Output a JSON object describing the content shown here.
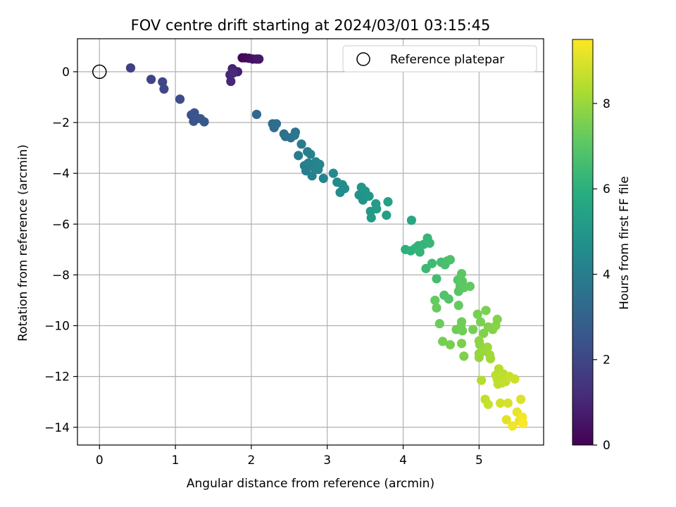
{
  "chart_data": {
    "type": "scatter",
    "title": "FOV centre drift starting at 2024/03/01 03:15:45",
    "xlabel": "Angular distance from reference (arcmin)",
    "ylabel": "Rotation from reference (arcmin)",
    "xlim": [
      -0.29,
      5.85
    ],
    "ylim": [
      -14.7,
      1.3
    ],
    "x_ticks": [
      "0",
      "1",
      "2",
      "3",
      "4",
      "5"
    ],
    "y_ticks": [
      "0",
      "−2",
      "−4",
      "−6",
      "−8",
      "−10",
      "−12",
      "−14"
    ],
    "grid": true,
    "legend": {
      "placement": "upper right",
      "entries": [
        "Reference platepar"
      ]
    },
    "colorbar": {
      "label": "Hours from first FF file",
      "colormap": "viridis",
      "range": [
        0,
        9.5
      ],
      "ticks": [
        "0",
        "2",
        "4",
        "6",
        "8"
      ]
    },
    "reference_point": {
      "x": 0,
      "y": 0,
      "label": "Reference platepar"
    },
    "points": [
      {
        "x": 1.88,
        "y": 0.55,
        "h": 0.1
      },
      {
        "x": 1.92,
        "y": 0.55,
        "h": 0.2
      },
      {
        "x": 1.97,
        "y": 0.53,
        "h": 0.3
      },
      {
        "x": 2.02,
        "y": 0.5,
        "h": 0.4
      },
      {
        "x": 2.07,
        "y": 0.5,
        "h": 0.5
      },
      {
        "x": 2.1,
        "y": 0.5,
        "h": 0.6
      },
      {
        "x": 1.82,
        "y": 0.0,
        "h": 0.8
      },
      {
        "x": 1.75,
        "y": 0.12,
        "h": 0.9
      },
      {
        "x": 1.72,
        "y": -0.12,
        "h": 1.0
      },
      {
        "x": 1.73,
        "y": -0.38,
        "h": 1.05
      },
      {
        "x": 1.76,
        "y": -0.05,
        "h": 1.1
      },
      {
        "x": 0.41,
        "y": 0.15,
        "h": 1.8
      },
      {
        "x": 0.68,
        "y": -0.3,
        "h": 1.9
      },
      {
        "x": 0.83,
        "y": -0.4,
        "h": 2.0
      },
      {
        "x": 0.85,
        "y": -0.68,
        "h": 2.05
      },
      {
        "x": 1.06,
        "y": -1.08,
        "h": 2.2
      },
      {
        "x": 1.21,
        "y": -1.7,
        "h": 2.4
      },
      {
        "x": 1.25,
        "y": -1.62,
        "h": 2.45
      },
      {
        "x": 1.24,
        "y": -1.95,
        "h": 2.5
      },
      {
        "x": 1.33,
        "y": -1.85,
        "h": 2.55
      },
      {
        "x": 1.38,
        "y": -1.97,
        "h": 2.6
      },
      {
        "x": 1.27,
        "y": -1.8,
        "h": 2.5
      },
      {
        "x": 2.07,
        "y": -1.68,
        "h": 3.2
      },
      {
        "x": 2.28,
        "y": -2.05,
        "h": 3.3
      },
      {
        "x": 2.3,
        "y": -2.2,
        "h": 3.35
      },
      {
        "x": 2.33,
        "y": -2.05,
        "h": 3.4
      },
      {
        "x": 2.43,
        "y": -2.45,
        "h": 3.5
      },
      {
        "x": 2.45,
        "y": -2.55,
        "h": 3.55
      },
      {
        "x": 2.52,
        "y": -2.6,
        "h": 3.6
      },
      {
        "x": 2.58,
        "y": -2.38,
        "h": 3.65
      },
      {
        "x": 2.57,
        "y": -2.5,
        "h": 3.7
      },
      {
        "x": 2.62,
        "y": -3.3,
        "h": 3.9
      },
      {
        "x": 2.66,
        "y": -2.85,
        "h": 3.95
      },
      {
        "x": 2.7,
        "y": -3.7,
        "h": 4.0
      },
      {
        "x": 2.72,
        "y": -3.9,
        "h": 4.05
      },
      {
        "x": 2.75,
        "y": -3.6,
        "h": 4.1
      },
      {
        "x": 2.78,
        "y": -3.25,
        "h": 4.1
      },
      {
        "x": 2.8,
        "y": -4.1,
        "h": 4.15
      },
      {
        "x": 2.82,
        "y": -3.75,
        "h": 4.2
      },
      {
        "x": 2.85,
        "y": -3.55,
        "h": 4.2
      },
      {
        "x": 2.88,
        "y": -3.85,
        "h": 4.25
      },
      {
        "x": 2.9,
        "y": -3.65,
        "h": 4.25
      },
      {
        "x": 2.74,
        "y": -3.15,
        "h": 4.05
      },
      {
        "x": 2.95,
        "y": -4.2,
        "h": 4.3
      },
      {
        "x": 3.08,
        "y": -4.0,
        "h": 4.45
      },
      {
        "x": 3.13,
        "y": -4.35,
        "h": 4.5
      },
      {
        "x": 3.17,
        "y": -4.75,
        "h": 4.55
      },
      {
        "x": 3.2,
        "y": -4.45,
        "h": 4.6
      },
      {
        "x": 3.23,
        "y": -4.6,
        "h": 4.65
      },
      {
        "x": 3.42,
        "y": -4.85,
        "h": 4.85
      },
      {
        "x": 3.45,
        "y": -4.55,
        "h": 4.9
      },
      {
        "x": 3.47,
        "y": -5.05,
        "h": 4.9
      },
      {
        "x": 3.5,
        "y": -4.7,
        "h": 4.95
      },
      {
        "x": 3.55,
        "y": -4.9,
        "h": 5.0
      },
      {
        "x": 3.57,
        "y": -5.5,
        "h": 5.05
      },
      {
        "x": 3.58,
        "y": -5.75,
        "h": 5.1
      },
      {
        "x": 3.64,
        "y": -5.2,
        "h": 5.15
      },
      {
        "x": 3.65,
        "y": -5.4,
        "h": 5.2
      },
      {
        "x": 3.78,
        "y": -5.65,
        "h": 5.3
      },
      {
        "x": 3.8,
        "y": -5.12,
        "h": 5.35
      },
      {
        "x": 4.11,
        "y": -5.85,
        "h": 5.7
      },
      {
        "x": 4.03,
        "y": -7.0,
        "h": 6.0
      },
      {
        "x": 4.1,
        "y": -7.05,
        "h": 6.05
      },
      {
        "x": 4.16,
        "y": -6.95,
        "h": 6.1
      },
      {
        "x": 4.2,
        "y": -6.85,
        "h": 6.15
      },
      {
        "x": 4.22,
        "y": -7.1,
        "h": 6.2
      },
      {
        "x": 4.27,
        "y": -6.8,
        "h": 6.25
      },
      {
        "x": 4.32,
        "y": -6.55,
        "h": 6.25
      },
      {
        "x": 4.35,
        "y": -6.75,
        "h": 6.3
      },
      {
        "x": 4.3,
        "y": -7.75,
        "h": 6.4
      },
      {
        "x": 4.38,
        "y": -7.55,
        "h": 6.45
      },
      {
        "x": 4.44,
        "y": -8.15,
        "h": 6.55
      },
      {
        "x": 4.5,
        "y": -7.5,
        "h": 6.6
      },
      {
        "x": 4.55,
        "y": -7.6,
        "h": 6.65
      },
      {
        "x": 4.58,
        "y": -7.45,
        "h": 6.7
      },
      {
        "x": 4.62,
        "y": -7.4,
        "h": 6.75
      },
      {
        "x": 4.54,
        "y": -8.8,
        "h": 6.85
      },
      {
        "x": 4.6,
        "y": -8.95,
        "h": 6.9
      },
      {
        "x": 4.72,
        "y": -8.2,
        "h": 6.95
      },
      {
        "x": 4.75,
        "y": -8.45,
        "h": 7.0
      },
      {
        "x": 4.73,
        "y": -8.65,
        "h": 7.0
      },
      {
        "x": 4.77,
        "y": -7.95,
        "h": 7.05
      },
      {
        "x": 4.78,
        "y": -8.25,
        "h": 7.05
      },
      {
        "x": 4.8,
        "y": -8.5,
        "h": 7.1
      },
      {
        "x": 4.88,
        "y": -8.45,
        "h": 7.15
      },
      {
        "x": 4.73,
        "y": -9.2,
        "h": 7.2
      },
      {
        "x": 4.42,
        "y": -9.0,
        "h": 7.2
      },
      {
        "x": 4.44,
        "y": -9.3,
        "h": 7.25
      },
      {
        "x": 4.48,
        "y": -9.92,
        "h": 7.3
      },
      {
        "x": 4.7,
        "y": -10.15,
        "h": 7.35
      },
      {
        "x": 4.76,
        "y": -10.05,
        "h": 7.4
      },
      {
        "x": 4.78,
        "y": -10.2,
        "h": 7.4
      },
      {
        "x": 4.52,
        "y": -10.62,
        "h": 7.45
      },
      {
        "x": 4.62,
        "y": -10.75,
        "h": 7.5
      },
      {
        "x": 4.77,
        "y": -10.7,
        "h": 7.55
      },
      {
        "x": 4.8,
        "y": -11.2,
        "h": 7.6
      },
      {
        "x": 4.77,
        "y": -9.85,
        "h": 7.35
      },
      {
        "x": 4.92,
        "y": -10.15,
        "h": 7.45
      },
      {
        "x": 4.98,
        "y": -9.55,
        "h": 7.5
      },
      {
        "x": 5.02,
        "y": -9.85,
        "h": 7.55
      },
      {
        "x": 5.06,
        "y": -10.3,
        "h": 7.6
      },
      {
        "x": 5.09,
        "y": -9.4,
        "h": 7.55
      },
      {
        "x": 5.12,
        "y": -10.05,
        "h": 7.65
      },
      {
        "x": 5.18,
        "y": -10.15,
        "h": 7.7
      },
      {
        "x": 5.22,
        "y": -10.0,
        "h": 7.75
      },
      {
        "x": 5.24,
        "y": -9.75,
        "h": 7.7
      },
      {
        "x": 5.0,
        "y": -10.6,
        "h": 7.8
      },
      {
        "x": 5.01,
        "y": -10.75,
        "h": 7.85
      },
      {
        "x": 5.0,
        "y": -11.1,
        "h": 7.9
      },
      {
        "x": 5.0,
        "y": -11.25,
        "h": 7.95
      },
      {
        "x": 5.06,
        "y": -11.0,
        "h": 8.0
      },
      {
        "x": 5.11,
        "y": -10.85,
        "h": 8.05
      },
      {
        "x": 5.14,
        "y": -11.15,
        "h": 8.1
      },
      {
        "x": 5.15,
        "y": -11.3,
        "h": 8.15
      },
      {
        "x": 5.03,
        "y": -12.15,
        "h": 8.4
      },
      {
        "x": 5.08,
        "y": -12.9,
        "h": 8.6
      },
      {
        "x": 5.12,
        "y": -13.1,
        "h": 8.7
      },
      {
        "x": 5.22,
        "y": -11.95,
        "h": 8.5
      },
      {
        "x": 5.24,
        "y": -12.1,
        "h": 8.55
      },
      {
        "x": 5.26,
        "y": -11.7,
        "h": 8.45
      },
      {
        "x": 5.25,
        "y": -12.3,
        "h": 8.6
      },
      {
        "x": 5.27,
        "y": -12.05,
        "h": 8.55
      },
      {
        "x": 5.3,
        "y": -12.25,
        "h": 8.6
      },
      {
        "x": 5.32,
        "y": -11.9,
        "h": 8.55
      },
      {
        "x": 5.35,
        "y": -12.2,
        "h": 8.65
      },
      {
        "x": 5.4,
        "y": -12.0,
        "h": 8.7
      },
      {
        "x": 5.47,
        "y": -12.1,
        "h": 8.75
      },
      {
        "x": 5.28,
        "y": -13.05,
        "h": 8.85
      },
      {
        "x": 5.38,
        "y": -13.05,
        "h": 8.9
      },
      {
        "x": 5.36,
        "y": -13.7,
        "h": 9.1
      },
      {
        "x": 5.44,
        "y": -13.95,
        "h": 9.3
      },
      {
        "x": 5.5,
        "y": -13.4,
        "h": 9.2
      },
      {
        "x": 5.53,
        "y": -13.75,
        "h": 9.25
      },
      {
        "x": 5.55,
        "y": -12.9,
        "h": 9.0
      },
      {
        "x": 5.57,
        "y": -13.6,
        "h": 9.35
      },
      {
        "x": 5.58,
        "y": -13.85,
        "h": 9.45
      }
    ]
  }
}
